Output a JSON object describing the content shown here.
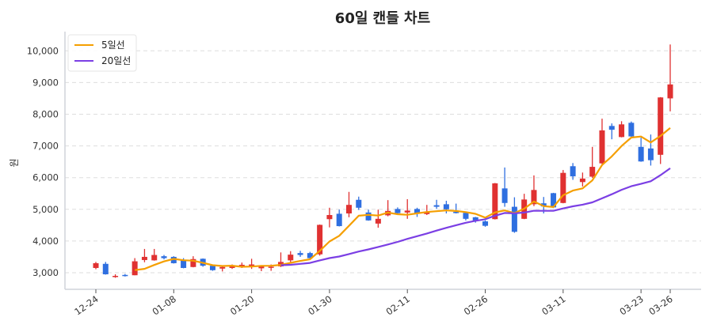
{
  "chart_data": {
    "type": "candlestick",
    "title": "60일 캔들 차트",
    "xlabel": "",
    "ylabel": "원",
    "ylim": [
      2500,
      10600
    ],
    "yticks": [
      3000,
      4000,
      5000,
      6000,
      7000,
      8000,
      9000,
      10000
    ],
    "ytick_labels": [
      "3,000",
      "4,000",
      "5,000",
      "6,000",
      "7,000",
      "8,000",
      "9,000",
      "10,000"
    ],
    "xticks": [
      {
        "index": 0,
        "label": "12-24"
      },
      {
        "index": 8,
        "label": "01-08"
      },
      {
        "index": 16,
        "label": "01-20"
      },
      {
        "index": 24,
        "label": "01-30"
      },
      {
        "index": 32,
        "label": "02-11"
      },
      {
        "index": 40,
        "label": "02-26"
      },
      {
        "index": 48,
        "label": "03-11"
      },
      {
        "index": 56,
        "label": "03-23"
      },
      {
        "index": 59,
        "label": "03-26"
      }
    ],
    "grid": true,
    "legend_position": "top-left",
    "colors": {
      "up": "#e03131",
      "down": "#2f6fe0",
      "ma5": "#f59f00",
      "ma20": "#7b3fe4",
      "grid": "#dddddd",
      "axis": "#d0d4da"
    },
    "legend": [
      {
        "key": "ma5",
        "label": "5일선",
        "window": 5
      },
      {
        "key": "ma20",
        "label": "20일선",
        "window": 20
      }
    ],
    "ohlc": [
      [
        3150,
        3340,
        3110,
        3300
      ],
      [
        3280,
        3340,
        2940,
        2950
      ],
      [
        2880,
        2950,
        2840,
        2900
      ],
      [
        2930,
        2960,
        2880,
        2900
      ],
      [
        2920,
        3460,
        2920,
        3360
      ],
      [
        3400,
        3750,
        3330,
        3500
      ],
      [
        3390,
        3750,
        3380,
        3560
      ],
      [
        3520,
        3560,
        3420,
        3460
      ],
      [
        3500,
        3520,
        3290,
        3300
      ],
      [
        3400,
        3460,
        3140,
        3150
      ],
      [
        3180,
        3520,
        3170,
        3430
      ],
      [
        3440,
        3450,
        3190,
        3220
      ],
      [
        3220,
        3250,
        3060,
        3080
      ],
      [
        3130,
        3230,
        3040,
        3180
      ],
      [
        3150,
        3260,
        3120,
        3200
      ],
      [
        3180,
        3320,
        3150,
        3250
      ],
      [
        3200,
        3440,
        3120,
        3260
      ],
      [
        3140,
        3230,
        3050,
        3200
      ],
      [
        3160,
        3260,
        3060,
        3190
      ],
      [
        3200,
        3640,
        3180,
        3340
      ],
      [
        3390,
        3680,
        3320,
        3570
      ],
      [
        3620,
        3690,
        3500,
        3560
      ],
      [
        3620,
        3660,
        3420,
        3460
      ],
      [
        3580,
        4520,
        3540,
        4510
      ],
      [
        4690,
        5050,
        4430,
        4820
      ],
      [
        4860,
        4990,
        4460,
        4470
      ],
      [
        4870,
        5550,
        4750,
        5140
      ],
      [
        5300,
        5400,
        4980,
        5050
      ],
      [
        4900,
        4990,
        4640,
        4650
      ],
      [
        4550,
        4990,
        4420,
        4700
      ],
      [
        4810,
        5290,
        4780,
        4950
      ],
      [
        5010,
        5060,
        4850,
        4880
      ],
      [
        4900,
        5320,
        4700,
        4960
      ],
      [
        5010,
        5050,
        4760,
        4880
      ],
      [
        4850,
        5140,
        4820,
        4900
      ],
      [
        5130,
        5300,
        5020,
        5080
      ],
      [
        5160,
        5270,
        4870,
        5000
      ],
      [
        4920,
        5180,
        4870,
        4880
      ],
      [
        4890,
        4920,
        4650,
        4700
      ],
      [
        4750,
        4760,
        4580,
        4630
      ],
      [
        4620,
        4650,
        4450,
        4480
      ],
      [
        4690,
        5830,
        4680,
        5820
      ],
      [
        5660,
        6320,
        5080,
        5200
      ],
      [
        5080,
        5380,
        4260,
        4290
      ],
      [
        4700,
        5490,
        4690,
        5310
      ],
      [
        5160,
        6070,
        5100,
        5610
      ],
      [
        5190,
        5390,
        4870,
        5090
      ],
      [
        5510,
        5520,
        5040,
        5060
      ],
      [
        5200,
        6240,
        5190,
        6150
      ],
      [
        6360,
        6460,
        5930,
        6040
      ],
      [
        5860,
        6160,
        5720,
        5970
      ],
      [
        6030,
        6970,
        5990,
        6340
      ],
      [
        6450,
        7860,
        6430,
        7490
      ],
      [
        7630,
        7710,
        7210,
        7510
      ],
      [
        7280,
        7780,
        7270,
        7680
      ],
      [
        7730,
        7770,
        7290,
        7300
      ],
      [
        6970,
        7260,
        6500,
        6510
      ],
      [
        6920,
        7360,
        6380,
        6550
      ],
      [
        6720,
        8540,
        6430,
        8530
      ],
      [
        8500,
        10200,
        8090,
        8940
      ]
    ]
  }
}
